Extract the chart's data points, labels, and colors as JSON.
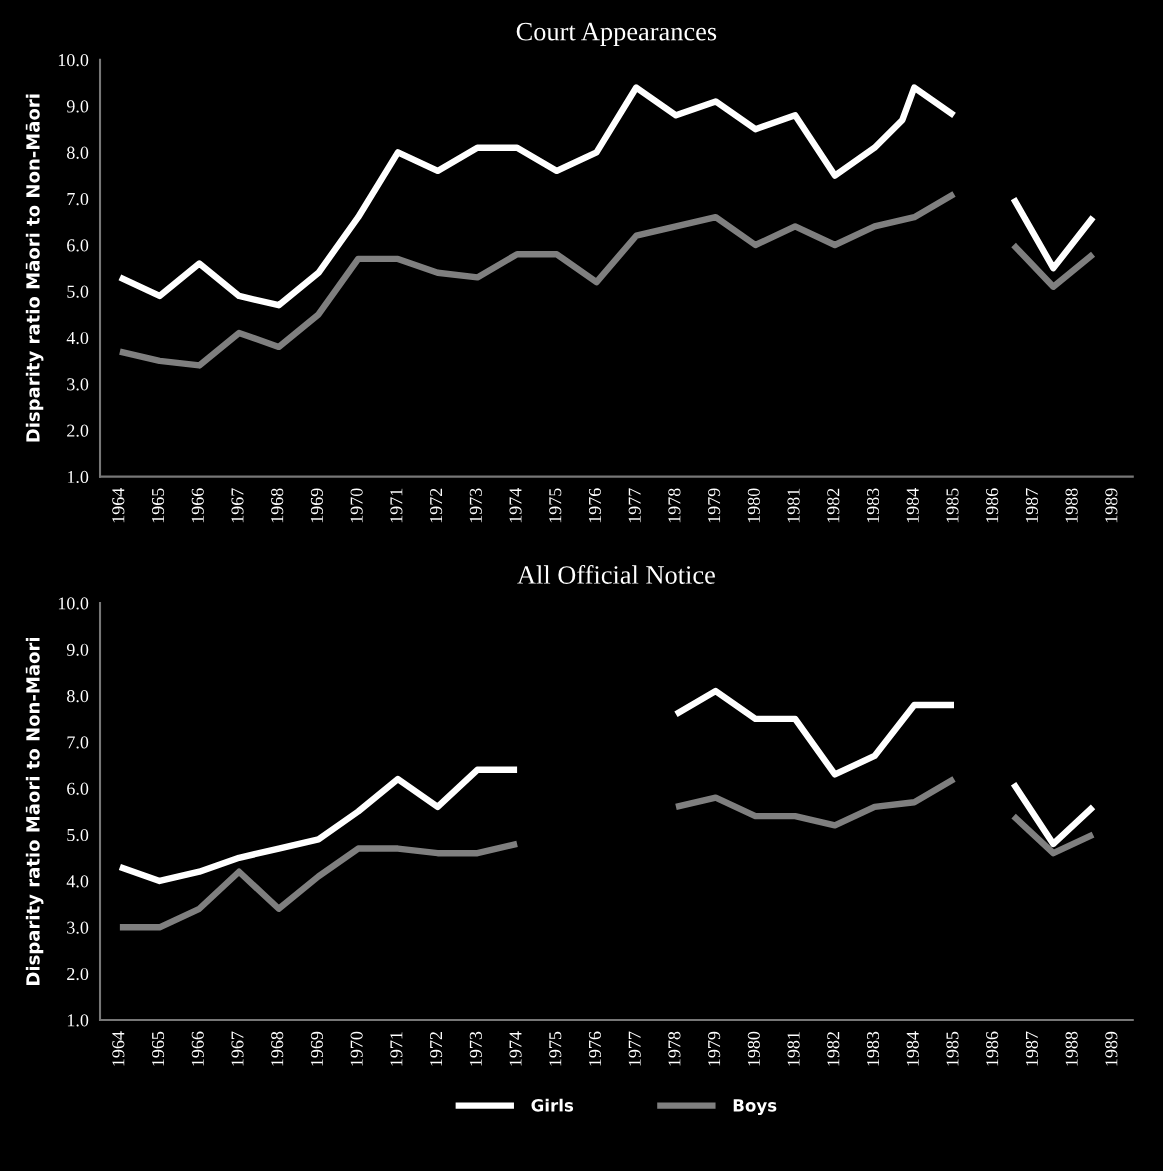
{
  "chart_data": [
    {
      "type": "line",
      "title": "Court Appearances",
      "ylabel": "Disparity ratio Māori to Non-Māori",
      "xlim": [
        1963.5,
        1989.5
      ],
      "xticks": [
        1964,
        1965,
        1966,
        1967,
        1968,
        1969,
        1970,
        1971,
        1972,
        1973,
        1974,
        1975,
        1976,
        1977,
        1978,
        1979,
        1980,
        1981,
        1982,
        1983,
        1984,
        1985,
        1986,
        1987,
        1988,
        1989
      ],
      "ylim": [
        1,
        10
      ],
      "yticks": [
        {
          "value": 1,
          "label": "1.0"
        },
        {
          "value": 2,
          "label": "2.0"
        },
        {
          "value": 3,
          "label": "3.0"
        },
        {
          "value": 4,
          "label": "4.0"
        },
        {
          "value": 5,
          "label": "5.0"
        },
        {
          "value": 6,
          "label": "6.0"
        },
        {
          "value": 7,
          "label": "7.0"
        },
        {
          "value": 8,
          "label": "8.0"
        },
        {
          "value": 9,
          "label": "9.0"
        },
        {
          "value": 10,
          "label": "10.0"
        }
      ],
      "grid": false,
      "legend": "bottom",
      "marker": "none",
      "line_style": "solid",
      "series": [
        {
          "name": "Girls",
          "color": "#ffffff",
          "x": [
            1964,
            1965,
            1966,
            1967,
            1968,
            1969,
            1970,
            1971,
            1972,
            1973,
            1974,
            1975,
            1976,
            1977,
            1978,
            1979,
            1980,
            1981,
            1982,
            1983,
            1983.7,
            1984,
            1985,
            1986,
            1986.5,
            1987.5,
            1988.5
          ],
          "values": [
            5.3,
            4.9,
            5.6,
            4.9,
            4.7,
            5.4,
            6.6,
            8.0,
            7.6,
            8.1,
            8.1,
            7.6,
            8.0,
            9.4,
            8.8,
            9.1,
            8.5,
            8.8,
            7.5,
            8.1,
            8.7,
            9.4,
            8.8,
            null,
            7.0,
            5.5,
            6.6
          ]
        },
        {
          "name": "Boys",
          "color": "#7f7f7f",
          "x": [
            1964,
            1965,
            1966,
            1967,
            1968,
            1969,
            1970,
            1971,
            1972,
            1973,
            1974,
            1975,
            1976,
            1977,
            1978,
            1979,
            1980,
            1981,
            1982,
            1983,
            1984,
            1985,
            1986,
            1986.5,
            1987.5,
            1988.5
          ],
          "values": [
            3.7,
            3.5,
            3.4,
            4.1,
            3.8,
            4.5,
            5.7,
            5.7,
            5.4,
            5.3,
            5.8,
            5.8,
            5.2,
            6.2,
            6.4,
            6.6,
            6.0,
            6.4,
            6.0,
            6.4,
            6.6,
            7.1,
            null,
            6.0,
            5.1,
            5.8
          ]
        }
      ]
    },
    {
      "type": "line",
      "title": "All Official Notice",
      "ylabel": "Disparity ratio Māori to Non-Māori",
      "xlim": [
        1963.5,
        1989.5
      ],
      "xticks": [
        1964,
        1965,
        1966,
        1967,
        1968,
        1969,
        1970,
        1971,
        1972,
        1973,
        1974,
        1975,
        1976,
        1977,
        1978,
        1979,
        1980,
        1981,
        1982,
        1983,
        1984,
        1985,
        1986,
        1987,
        1988,
        1989
      ],
      "ylim": [
        1,
        10
      ],
      "yticks": [
        {
          "value": 1,
          "label": "1.0"
        },
        {
          "value": 2,
          "label": "2.0"
        },
        {
          "value": 3,
          "label": "3.0"
        },
        {
          "value": 4,
          "label": "4.0"
        },
        {
          "value": 5,
          "label": "5.0"
        },
        {
          "value": 6,
          "label": "6.0"
        },
        {
          "value": 7,
          "label": "7.0"
        },
        {
          "value": 8,
          "label": "8.0"
        },
        {
          "value": 9,
          "label": "9.0"
        },
        {
          "value": 10,
          "label": "10.0"
        }
      ],
      "grid": false,
      "marker": "none",
      "line_style": "solid",
      "series": [
        {
          "color": "#ffffff",
          "x": [
            1964,
            1965,
            1966,
            1967,
            1968,
            1969,
            1970,
            1971,
            1972,
            1973,
            1974,
            1975,
            1978,
            1979,
            1980,
            1981,
            1982,
            1983,
            1984,
            1985,
            1986,
            1986.5,
            1987.5,
            1988.5
          ],
          "values": [
            4.3,
            4.0,
            4.2,
            4.5,
            4.7,
            4.9,
            5.5,
            6.2,
            5.6,
            6.4,
            6.4,
            null,
            7.6,
            8.1,
            7.5,
            7.5,
            6.3,
            6.7,
            7.8,
            7.8,
            null,
            6.1,
            4.8,
            5.6
          ]
        },
        {
          "color": "#7f7f7f",
          "x": [
            1964,
            1965,
            1966,
            1967,
            1968,
            1969,
            1970,
            1971,
            1972,
            1973,
            1974,
            1975,
            1978,
            1979,
            1980,
            1981,
            1982,
            1983,
            1984,
            1985,
            1986,
            1986.5,
            1987.5,
            1988.5
          ],
          "values": [
            3.0,
            3.0,
            3.4,
            4.2,
            3.4,
            4.1,
            4.7,
            4.7,
            4.6,
            4.6,
            4.8,
            null,
            5.6,
            5.8,
            5.4,
            5.4,
            5.2,
            5.6,
            5.7,
            6.2,
            null,
            5.4,
            4.6,
            5.0
          ]
        }
      ]
    }
  ]
}
